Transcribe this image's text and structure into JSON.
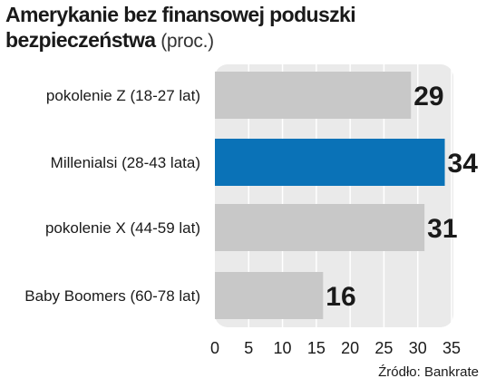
{
  "title": {
    "line1": "Amerykanie bez finansowej poduszki",
    "line2": "bezpieczeństwa",
    "unit": "(proc.)"
  },
  "source": "Źródło: Bankrate",
  "colors": {
    "bar_default": "#c8c8c8",
    "bar_highlight": "#0a72b7",
    "panel_background": "#eaeaea",
    "text": "#1a1a1a"
  },
  "chart_data": {
    "type": "bar",
    "orientation": "horizontal",
    "categories": [
      "pokolenie Z (18-27 lat)",
      "Millenialsi (28-43 lata)",
      "pokolenie X (44-59 lat)",
      "Baby Boomers (60-78 lat)"
    ],
    "values": [
      29,
      34,
      31,
      16
    ],
    "highlight": [
      "Millenialsi (28-43 lata)"
    ],
    "xlim": [
      0,
      35
    ],
    "xticks": [
      0,
      5,
      10,
      15,
      20,
      25,
      30,
      35
    ],
    "grid": true,
    "grid_axis": "x",
    "legend": "none",
    "title": "Amerykanie bez finansowej poduszki bezpieczeństwa",
    "xlabel": "",
    "ylabel": ""
  }
}
